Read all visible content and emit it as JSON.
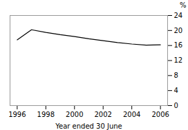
{
  "chart_data": {
    "type": "line",
    "x": [
      1996,
      1997,
      1998,
      1999,
      2000,
      2001,
      2002,
      2003,
      2004,
      2005,
      2006
    ],
    "values": [
      17.5,
      20.2,
      19.5,
      18.9,
      18.4,
      17.8,
      17.3,
      16.8,
      16.4,
      16.1,
      16.2
    ],
    "xlabel": "Year ended 30 June",
    "ylabel": "%",
    "color": "#000000",
    "xlim": [
      1995.5,
      2006.5
    ],
    "xticks": [
      1996,
      1998,
      2000,
      2002,
      2004,
      2006
    ],
    "ylim": [
      0,
      24
    ],
    "yticks": [
      0,
      4,
      8,
      12,
      16,
      20,
      24
    ],
    "grid": false
  }
}
